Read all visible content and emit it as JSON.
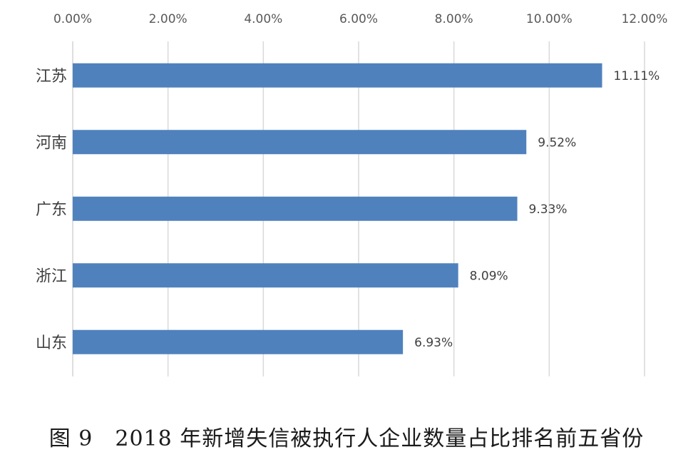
{
  "chart_data": {
    "type": "bar",
    "orientation": "horizontal",
    "categories": [
      "江苏",
      "河南",
      "广东",
      "浙江",
      "山东"
    ],
    "values": [
      11.11,
      9.52,
      9.33,
      8.09,
      6.93
    ],
    "data_labels": [
      "11.11%",
      "9.52%",
      "9.33%",
      "8.09%",
      "6.93%"
    ],
    "x_ticks": [
      "0.00%",
      "2.00%",
      "4.00%",
      "6.00%",
      "8.00%",
      "10.00%",
      "12.00%"
    ],
    "xlim": [
      0,
      12
    ],
    "x_axis_position": "top",
    "grid": true,
    "bar_color": "#4F81BD",
    "grid_color": "#D9D9D9"
  },
  "caption": "图 9　2018 年新增失信被执行人企业数量占比排名前五省份"
}
